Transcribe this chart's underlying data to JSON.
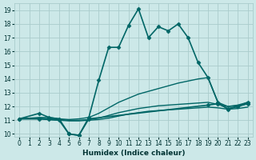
{
  "background_color": "#cce8e8",
  "grid_color": "#aacccc",
  "line_color": "#006666",
  "xlabel": "Humidex (Indice chaleur)",
  "xlim": [
    -0.5,
    23.5
  ],
  "ylim": [
    9.8,
    19.5
  ],
  "yticks": [
    10,
    11,
    12,
    13,
    14,
    15,
    16,
    17,
    18,
    19
  ],
  "xticks": [
    0,
    1,
    2,
    3,
    4,
    5,
    6,
    7,
    8,
    9,
    10,
    11,
    12,
    13,
    14,
    15,
    16,
    17,
    18,
    19,
    20,
    21,
    22,
    23
  ],
  "curves": [
    {
      "x": [
        0,
        2,
        3,
        4,
        5,
        6,
        7,
        8,
        9,
        10,
        11,
        12,
        13,
        14,
        15,
        16,
        17,
        18,
        19,
        20,
        21,
        22,
        23
      ],
      "y": [
        11.1,
        11.5,
        11.2,
        11.1,
        10.0,
        9.9,
        11.2,
        13.9,
        16.3,
        16.3,
        17.9,
        19.1,
        17.0,
        17.8,
        17.5,
        18.0,
        17.0,
        15.2,
        14.1,
        12.3,
        11.8,
        12.0,
        12.3
      ],
      "marker": "D",
      "markersize": 2.5,
      "linewidth": 1.2,
      "linestyle": "-"
    },
    {
      "x": [
        0,
        2,
        3,
        4,
        5,
        6,
        7,
        8,
        9,
        10,
        11,
        12,
        13,
        14,
        15,
        16,
        17,
        18,
        19,
        20,
        21,
        22,
        23
      ],
      "y": [
        11.1,
        11.2,
        11.2,
        11.1,
        11.05,
        11.1,
        11.2,
        11.5,
        11.9,
        12.3,
        12.6,
        12.9,
        13.1,
        13.3,
        13.5,
        13.7,
        13.85,
        14.0,
        14.1,
        12.3,
        12.0,
        12.1,
        12.3
      ],
      "marker": null,
      "markersize": 0,
      "linewidth": 1.0,
      "linestyle": "-"
    },
    {
      "x": [
        0,
        2,
        3,
        4,
        5,
        6,
        7,
        8,
        9,
        10,
        11,
        12,
        13,
        14,
        15,
        16,
        17,
        18,
        19,
        20,
        21,
        22,
        23
      ],
      "y": [
        11.1,
        11.15,
        11.1,
        11.05,
        11.0,
        11.0,
        11.05,
        11.15,
        11.35,
        11.55,
        11.7,
        11.85,
        11.95,
        12.05,
        12.1,
        12.15,
        12.2,
        12.25,
        12.3,
        12.15,
        12.0,
        12.05,
        12.2
      ],
      "marker": null,
      "markersize": 0,
      "linewidth": 1.0,
      "linestyle": "-"
    },
    {
      "x": [
        0,
        2,
        3,
        4,
        5,
        6,
        7,
        8,
        9,
        10,
        11,
        12,
        13,
        14,
        15,
        16,
        17,
        18,
        19,
        20,
        21,
        22,
        23
      ],
      "y": [
        11.1,
        11.1,
        11.05,
        11.0,
        10.95,
        10.95,
        11.0,
        11.05,
        11.15,
        11.3,
        11.45,
        11.55,
        11.65,
        11.7,
        11.75,
        11.8,
        11.85,
        11.9,
        11.95,
        11.9,
        11.8,
        11.85,
        11.95
      ],
      "marker": null,
      "markersize": 0,
      "linewidth": 1.0,
      "linestyle": "-"
    },
    {
      "x": [
        0,
        2,
        3,
        4,
        5,
        6,
        7,
        19,
        20,
        21,
        22,
        23
      ],
      "y": [
        11.1,
        11.1,
        11.05,
        11.0,
        10.0,
        9.9,
        11.1,
        12.1,
        12.2,
        11.85,
        12.0,
        12.2
      ],
      "marker": "D",
      "markersize": 2.5,
      "linewidth": 1.2,
      "linestyle": "-"
    }
  ]
}
